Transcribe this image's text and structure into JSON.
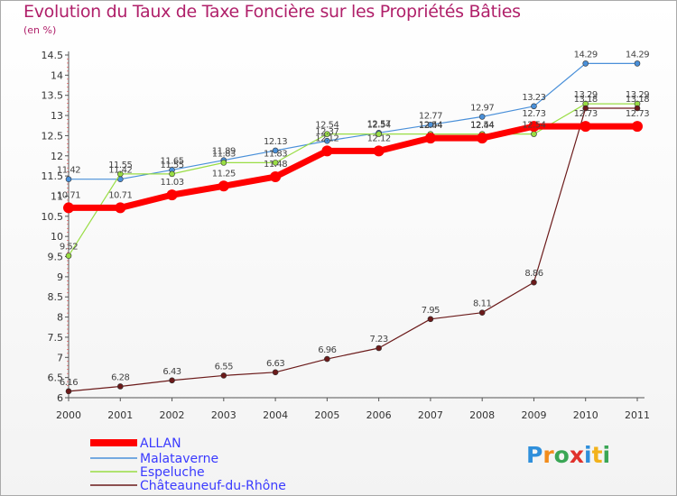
{
  "chart_data": {
    "type": "line",
    "title": "Evolution du Taux de Taxe Foncière sur les Propriétés Bâties",
    "ylabel": "(en %)",
    "xlabel": "",
    "categories": [
      "2000",
      "2001",
      "2002",
      "2003",
      "2004",
      "2005",
      "2006",
      "2007",
      "2008",
      "2009",
      "2010",
      "2011"
    ],
    "ylim": [
      6,
      14.5
    ],
    "yticks": [
      "6",
      "6.5",
      "7",
      "7.5",
      "8",
      "8.5",
      "9",
      "9.5",
      "10",
      "10.5",
      "11",
      "11.5",
      "12",
      "12.5",
      "13",
      "13.5",
      "14",
      "14.5"
    ],
    "grid": false,
    "legend_position": "bottom-left",
    "series": [
      {
        "name": "ALLAN",
        "color": "#ff0000",
        "values": [
          10.71,
          10.71,
          11.03,
          11.25,
          11.48,
          12.12,
          12.12,
          12.44,
          12.44,
          12.73,
          12.73,
          12.73
        ],
        "labels": [
          "10.71",
          "10.71",
          "11.03",
          "11.25",
          "11.48",
          "12.12",
          "12.12",
          "12.44",
          "12.44",
          "12.73",
          "12.73",
          "12.73"
        ]
      },
      {
        "name": "Malataverne",
        "color": "#4a90d9",
        "values": [
          11.42,
          11.42,
          11.65,
          11.89,
          12.13,
          12.37,
          12.57,
          12.77,
          12.97,
          13.23,
          14.29,
          14.29
        ],
        "labels": [
          "11.42",
          "11.42",
          "11.65",
          "11.89",
          "12.13",
          "12.37",
          "12.57",
          "12.77",
          "12.97",
          "13.23",
          "14.29",
          "14.29"
        ]
      },
      {
        "name": "Espeluche",
        "color": "#99dd44",
        "values": [
          9.52,
          11.55,
          11.55,
          11.83,
          11.83,
          12.54,
          12.54,
          12.54,
          12.54,
          12.54,
          13.29,
          13.29
        ],
        "labels": [
          "9.52",
          "11.55",
          "11.55",
          "11.83",
          "11.83",
          "12.54",
          "12.54",
          "12.54",
          "12.54",
          "12.54",
          "13.29",
          "13.29"
        ]
      },
      {
        "name": "Châteauneuf-du-Rhône",
        "color": "#6b1a1a",
        "values": [
          6.16,
          6.28,
          6.43,
          6.55,
          6.63,
          6.96,
          7.23,
          7.95,
          8.11,
          8.86,
          13.18,
          13.18
        ],
        "labels": [
          "6.16",
          "6.28",
          "6.43",
          "6.55",
          "6.63",
          "6.96",
          "7.23",
          "7.95",
          "8.11",
          "8.86",
          "13.18",
          "13.18"
        ]
      }
    ]
  },
  "logo": {
    "text": "Proxiti",
    "letters": [
      "P",
      "r",
      "o",
      "x",
      "i",
      "t",
      "i"
    ],
    "colors": [
      "#2f8fdb",
      "#f28c1b",
      "#3aa655",
      "#e0312b",
      "#2f8fdb",
      "#f2b21b",
      "#3aa655"
    ]
  }
}
